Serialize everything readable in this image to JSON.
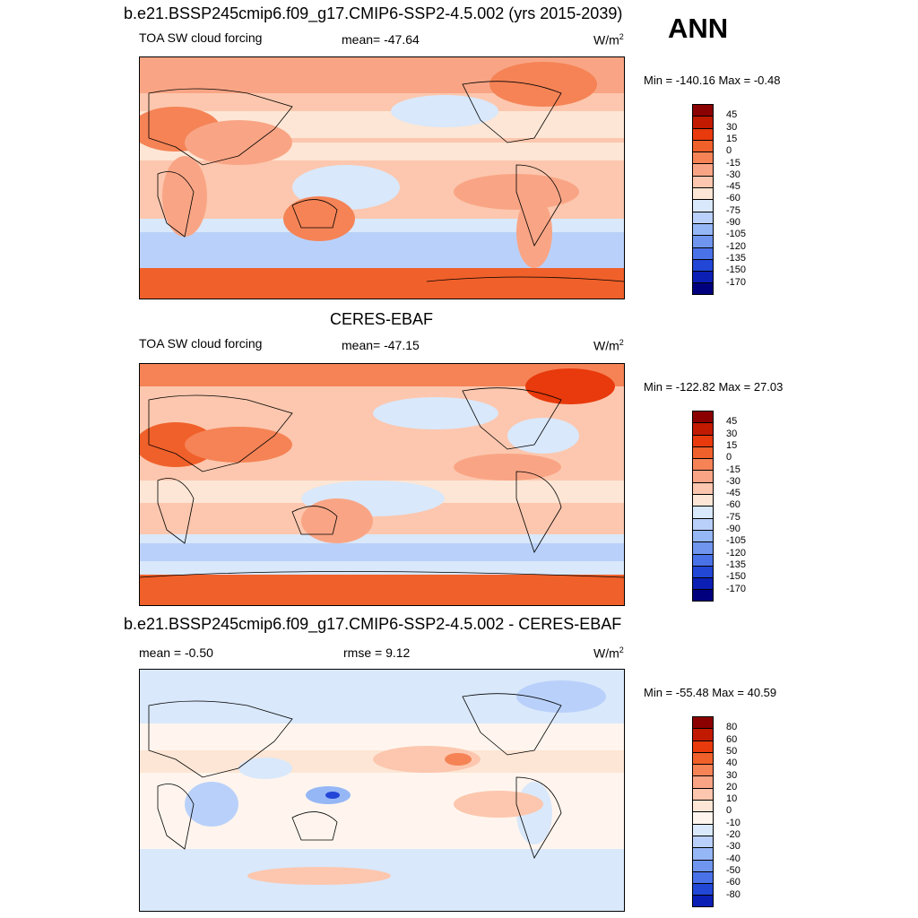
{
  "header": {
    "title": "b.e21.BSSP245cmip6.f09_g17.CMIP6-SSP2-4.5.002 (yrs 2015-2039)",
    "season": "ANN"
  },
  "panels": [
    {
      "id": "model",
      "left_label": "TOA SW cloud forcing",
      "center_label": "mean= -47.64",
      "right_label_base": "W/m",
      "right_label_sup": "2",
      "minmax": "Min = -140.16 Max =  -0.48",
      "colorbar_levels": [
        "45",
        "30",
        "15",
        "0",
        "-15",
        "-30",
        "-45",
        "-60",
        "-75",
        "-90",
        "-105",
        "-120",
        "-135",
        "-150",
        "-170"
      ]
    },
    {
      "id": "obs",
      "panel_title": "CERES-EBAF",
      "left_label": "TOA SW cloud forcing",
      "center_label": "mean= -47.15",
      "right_label_base": "W/m",
      "right_label_sup": "2",
      "minmax": "Min = -122.82 Max =  27.03",
      "colorbar_levels": [
        "45",
        "30",
        "15",
        "0",
        "-15",
        "-30",
        "-45",
        "-60",
        "-75",
        "-90",
        "-105",
        "-120",
        "-135",
        "-150",
        "-170"
      ]
    },
    {
      "id": "diff",
      "panel_title": "b.e21.BSSP245cmip6.f09_g17.CMIP6-SSP2-4.5.002 - CERES-EBAF",
      "left_label": "mean =  -0.50",
      "center_label": "rmse =   9.12",
      "right_label_base": "W/m",
      "right_label_sup": "2",
      "minmax": "Min = -55.48 Max =  40.59",
      "colorbar_levels": [
        "80",
        "60",
        "50",
        "40",
        "30",
        "20",
        "10",
        "0",
        "-10",
        "-20",
        "-30",
        "-40",
        "-50",
        "-60",
        "-80"
      ]
    }
  ],
  "colors": {
    "cbar_cf": [
      "#8b0000",
      "#c21a00",
      "#e83a0c",
      "#f0602a",
      "#f58356",
      "#f9a585",
      "#fcc7ae",
      "#fde6d5",
      "#d9e8fb",
      "#b9d1fa",
      "#96b7f6",
      "#6f95ee",
      "#4a72e8",
      "#2246d6",
      "#0b1fb4",
      "#00007f"
    ],
    "cbar_diff": [
      "#8b0000",
      "#c21a00",
      "#e83a0c",
      "#f0602a",
      "#f58356",
      "#f9a585",
      "#fcc7ae",
      "#fde6d5",
      "#fff5ee",
      "#d9e8fb",
      "#b9d1fa",
      "#96b7f6",
      "#6f95ee",
      "#4a72e8",
      "#2246d6",
      "#0b1fb4",
      "#00007f"
    ]
  }
}
